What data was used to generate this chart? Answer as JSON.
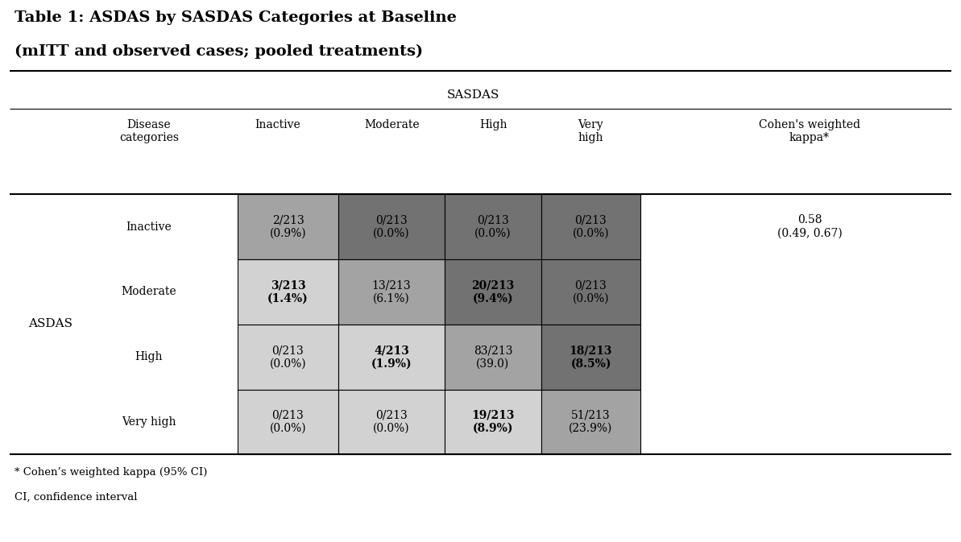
{
  "title_line1": "Table 1: ASDAS by SASDAS Categories at Baseline",
  "title_line2": "(mITT and observed cases; pooled treatments)",
  "sasdas_label": "SASDAS",
  "asdas_label": "ASDAS",
  "col_headers": [
    "Disease\ncategories",
    "Inactive",
    "Moderate",
    "High",
    "Very\nhigh",
    "Cohen's weighted\nkappa*"
  ],
  "row_labels": [
    "Inactive",
    "Moderate",
    "High",
    "Very high"
  ],
  "cell_data": [
    [
      "2/213\n(0.9%)",
      "0/213\n(0.0%)",
      "0/213\n(0.0%)",
      "0/213\n(0.0%)"
    ],
    [
      "3/213\n(1.4%)",
      "13/213\n(6.1%)",
      "20/213\n(9.4%)",
      "0/213\n(0.0%)"
    ],
    [
      "0/213\n(0.0%)",
      "4/213\n(1.9%)",
      "83/213\n(39.0)",
      "18/213\n(8.5%)"
    ],
    [
      "0/213\n(0.0%)",
      "0/213\n(0.0%)",
      "19/213\n(8.9%)",
      "51/213\n(23.9%)"
    ]
  ],
  "cell_bold": [
    [
      false,
      false,
      false,
      false
    ],
    [
      true,
      false,
      true,
      false
    ],
    [
      false,
      true,
      false,
      true
    ],
    [
      false,
      false,
      true,
      false
    ]
  ],
  "cohen_kappa": "0.58\n(0.49, 0.67)",
  "footnote1": "* Cohen’s weighted kappa (95% CI)",
  "footnote2": "CI, confidence interval",
  "bg_color": "#ffffff",
  "color_map": {
    "light": "#d2d2d2",
    "medium": "#a3a3a3",
    "dark": "#727272"
  },
  "cell_colors": [
    [
      "medium",
      "dark",
      "dark",
      "dark"
    ],
    [
      "light",
      "medium",
      "dark",
      "dark"
    ],
    [
      "light",
      "light",
      "medium",
      "dark"
    ],
    [
      "light",
      "light",
      "light",
      "medium"
    ]
  ]
}
